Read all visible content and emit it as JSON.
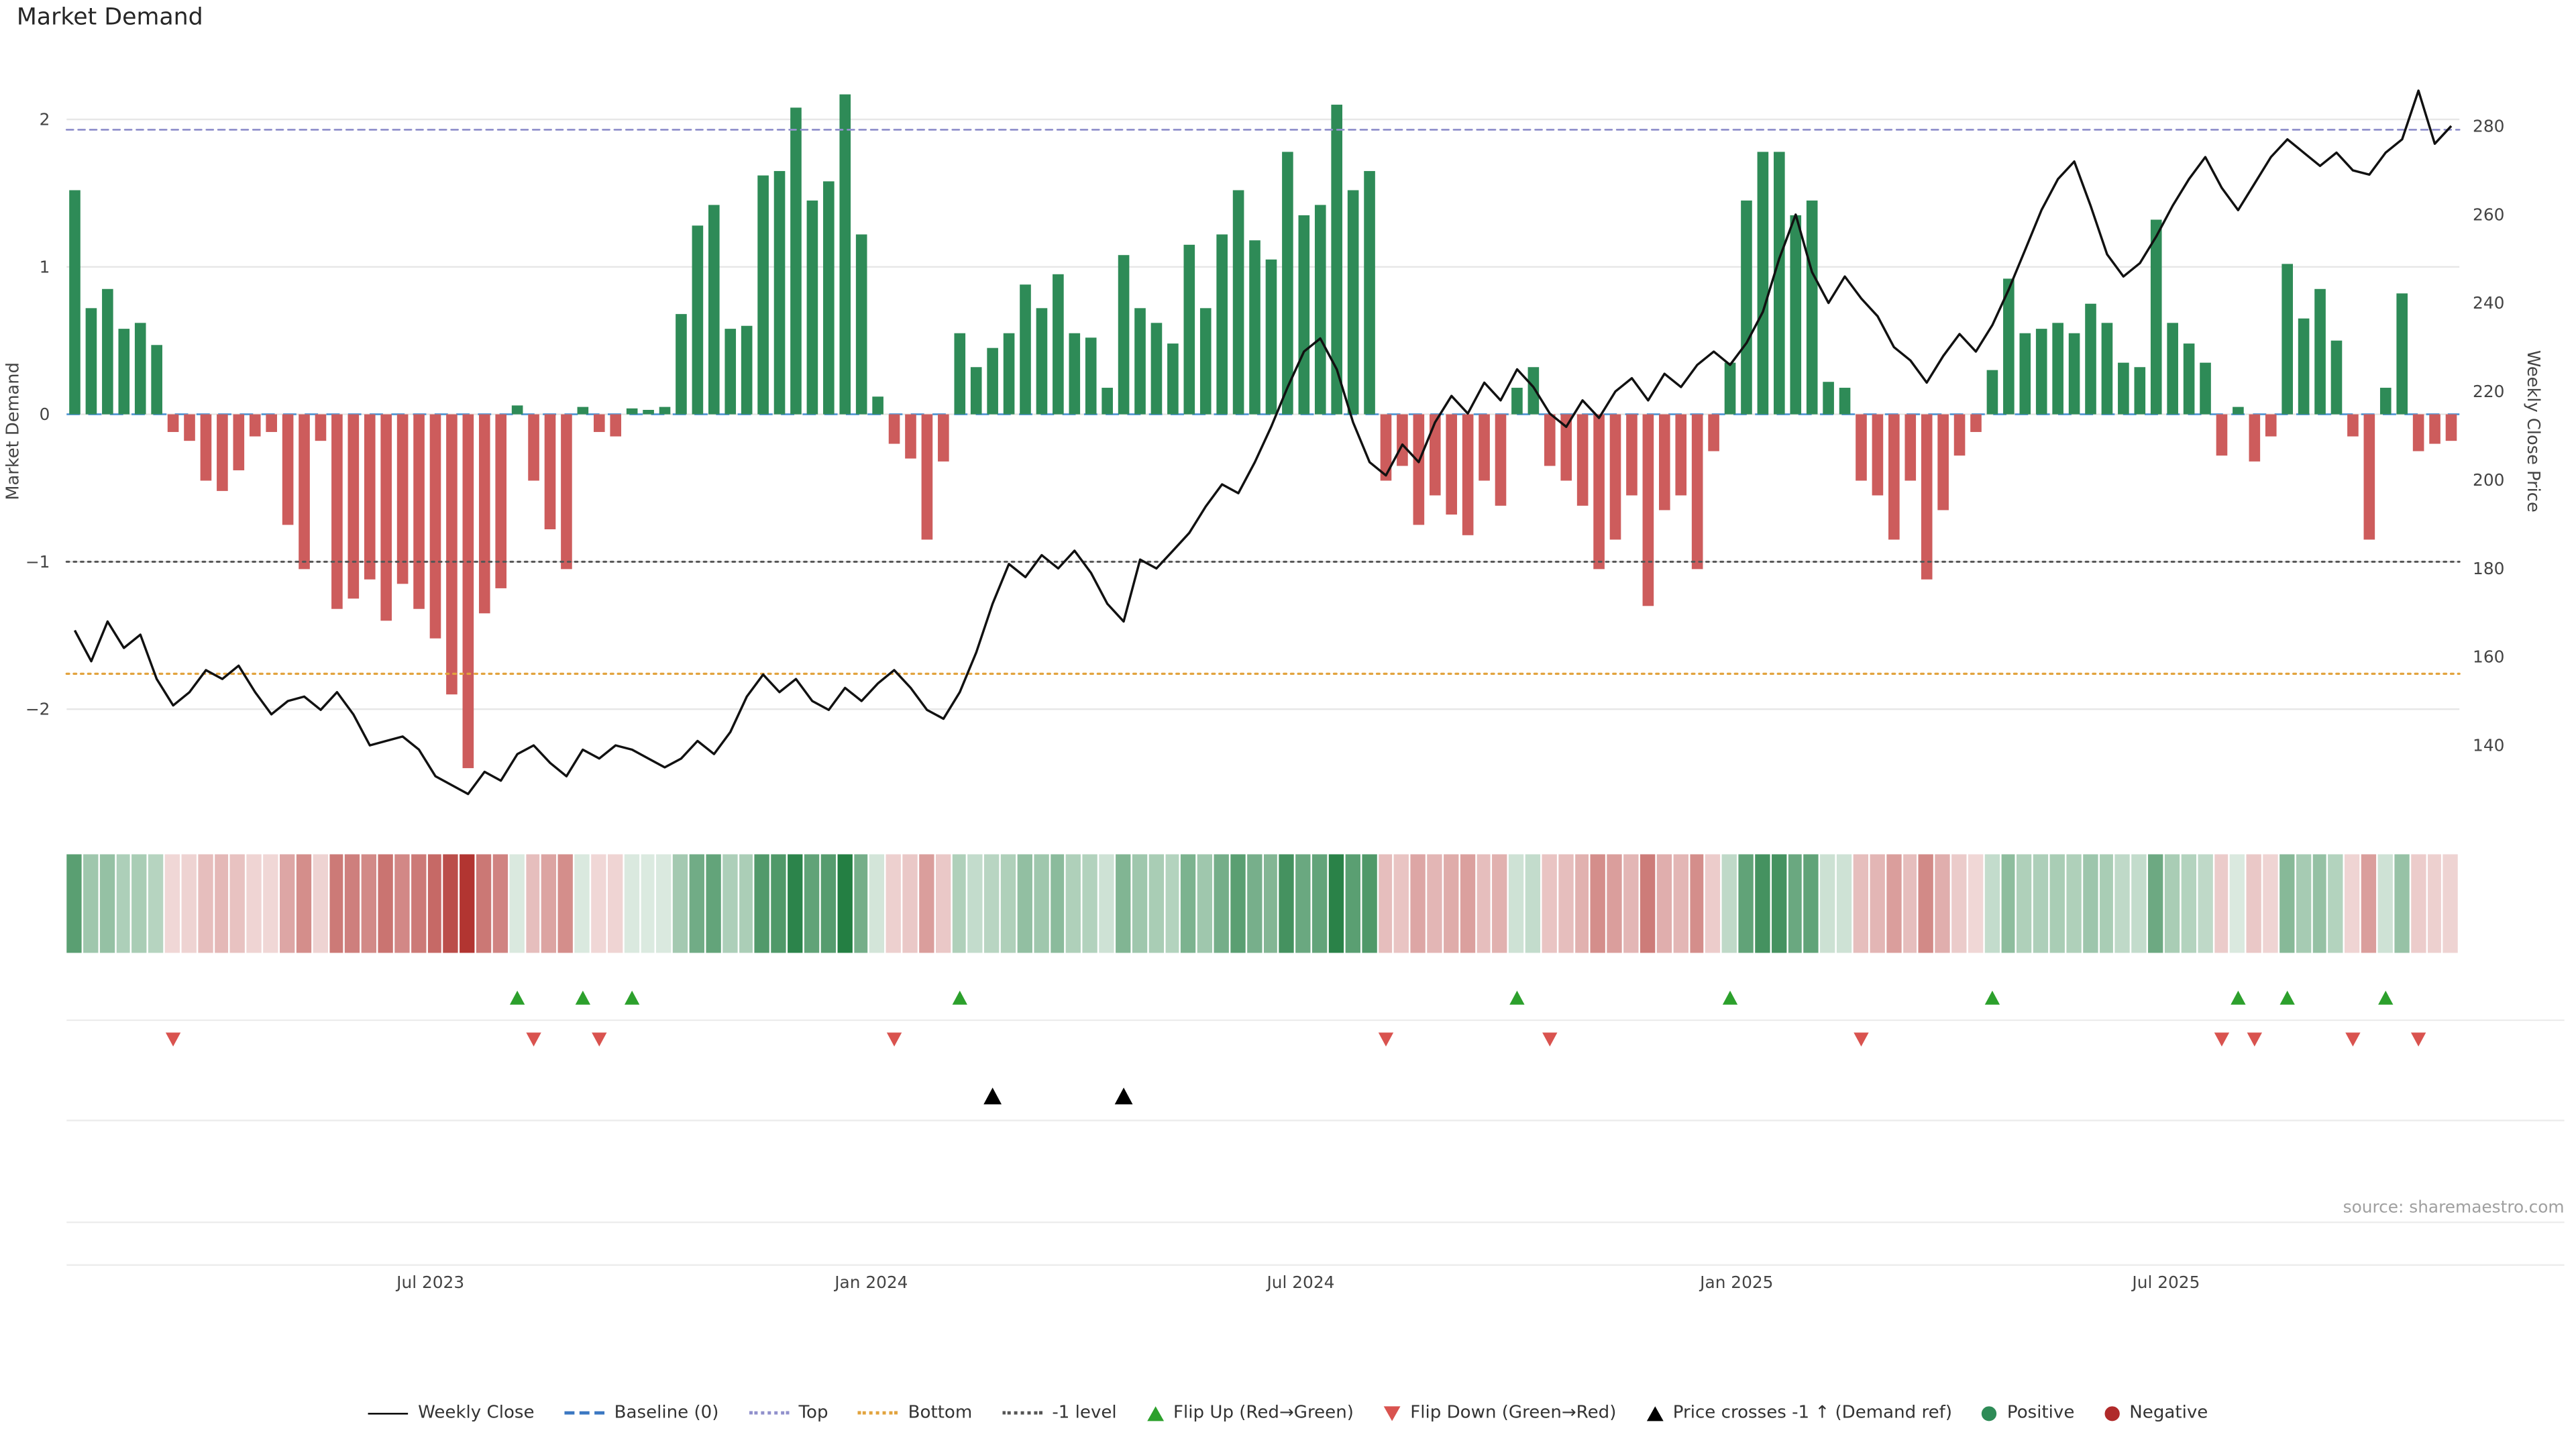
{
  "title": "Market Demand",
  "source": "source: sharemaestro.com",
  "axes": {
    "left_label": "Market Demand",
    "right_label": "Weekly Close Price"
  },
  "colors": {
    "positive": "#2e8b57",
    "negative": "#cd5c5c",
    "price_line": "#111111",
    "baseline": "#5b9bd5",
    "top_line": "#9191cc",
    "bottom_line": "#e2a33e",
    "minus_one_line": "#555555",
    "flip_up": "#2ca02c",
    "flip_down": "#d9534f",
    "price_cross": "#000000",
    "grid": "#e7e7e7",
    "tick_text": "#444444",
    "source_text": "#a0a0a0"
  },
  "legend": [
    {
      "icon": "line",
      "color": "#000000",
      "label": "Weekly Close"
    },
    {
      "icon": "dashed",
      "color": "#3b78c2",
      "label": "Baseline (0)"
    },
    {
      "icon": "dotted",
      "color": "#9191cc",
      "label": "Top"
    },
    {
      "icon": "dotted",
      "color": "#e2a33e",
      "label": "Bottom"
    },
    {
      "icon": "dotted",
      "color": "#555555",
      "label": "-1 level"
    },
    {
      "icon": "tri-up",
      "color": "#2ca02c",
      "label": "Flip Up (Red→Green)"
    },
    {
      "icon": "tri-down",
      "color": "#d9534f",
      "label": "Flip Down (Green→Red)"
    },
    {
      "icon": "tri-up",
      "color": "#000000",
      "label": "Price crosses -1 ↑ (Demand ref)"
    },
    {
      "icon": "dot",
      "color": "#2e8b57",
      "label": "Positive"
    },
    {
      "icon": "dot",
      "color": "#b02a2a",
      "label": "Negative"
    }
  ],
  "chart_data": {
    "type": "bar+line",
    "title": "Market Demand",
    "x_unit": "weekly points, Feb 2023 - Nov 2025",
    "n_points": 146,
    "x_ticks": [
      {
        "label": "Jul 2023",
        "pos": 21.7
      },
      {
        "label": "Jan 2024",
        "pos": 48.6
      },
      {
        "label": "Jul 2024",
        "pos": 74.8
      },
      {
        "label": "Jan 2025",
        "pos": 101.4
      },
      {
        "label": "Jul 2025",
        "pos": 127.6
      }
    ],
    "ylim_left": [
      -2.65,
      2.42
    ],
    "ylim_right": [
      126.5,
      295.5
    ],
    "left_ticks": [
      2,
      1,
      0,
      -1,
      -2
    ],
    "right_ticks": [
      280,
      260,
      240,
      220,
      200,
      180,
      160,
      140
    ],
    "reference_lines": [
      {
        "name": "Baseline (0)",
        "value": 0,
        "color": "#5b9bd5",
        "dash": "8 5",
        "width": 1.2
      },
      {
        "name": "Top",
        "value": 1.93,
        "color": "#9191cc",
        "dash": "4 3",
        "width": 1.1
      },
      {
        "name": "Bottom",
        "value": -1.76,
        "color": "#e2a33e",
        "dash": "1.5 2.8",
        "width": 1.3
      },
      {
        "name": "-1 level",
        "value": -1,
        "color": "#555555",
        "dash": "1.5 2.8",
        "width": 1.2
      }
    ],
    "series": [
      {
        "name": "Market Demand",
        "type": "bar",
        "axis": "left",
        "values": [
          1.52,
          0.72,
          0.85,
          0.58,
          0.62,
          0.47,
          -0.12,
          -0.18,
          -0.45,
          -0.52,
          -0.38,
          -0.15,
          -0.12,
          -0.75,
          -1.05,
          -0.18,
          -1.32,
          -1.25,
          -1.12,
          -1.4,
          -1.15,
          -1.32,
          -1.52,
          -1.9,
          -2.4,
          -1.35,
          -1.18,
          0.06,
          -0.45,
          -0.78,
          -1.05,
          0.05,
          -0.12,
          -0.15,
          0.04,
          0.03,
          0.05,
          0.68,
          1.28,
          1.42,
          0.58,
          0.6,
          1.62,
          1.65,
          2.08,
          1.45,
          1.58,
          2.17,
          1.22,
          0.12,
          -0.2,
          -0.3,
          -0.85,
          -0.32,
          0.55,
          0.32,
          0.45,
          0.55,
          0.88,
          0.72,
          0.95,
          0.55,
          0.52,
          0.18,
          1.08,
          0.72,
          0.62,
          0.48,
          1.15,
          0.72,
          1.22,
          1.52,
          1.18,
          1.05,
          1.78,
          1.35,
          1.42,
          2.1,
          1.52,
          1.65,
          -0.45,
          -0.35,
          -0.75,
          -0.55,
          -0.68,
          -0.82,
          -0.45,
          -0.62,
          0.18,
          0.32,
          -0.35,
          -0.45,
          -0.62,
          -1.05,
          -0.85,
          -0.55,
          -1.3,
          -0.65,
          -0.55,
          -1.05,
          -0.25,
          0.35,
          1.45,
          1.78,
          1.78,
          1.35,
          1.45,
          0.22,
          0.18,
          -0.45,
          -0.55,
          -0.85,
          -0.45,
          -1.12,
          -0.65,
          -0.28,
          -0.12,
          0.3,
          0.92,
          0.55,
          0.58,
          0.62,
          0.55,
          0.75,
          0.62,
          0.35,
          0.32,
          1.32,
          0.62,
          0.48,
          0.35,
          -0.28,
          0.05,
          -0.32,
          -0.15,
          1.02,
          0.65,
          0.85,
          0.5,
          -0.15,
          -0.85,
          0.18,
          0.82,
          -0.25,
          -0.2,
          -0.18
        ]
      },
      {
        "name": "Weekly Close",
        "type": "line",
        "axis": "right",
        "values": [
          166,
          159,
          168,
          162,
          165,
          155,
          149,
          152,
          157,
          155,
          158,
          152,
          147,
          150,
          151,
          148,
          152,
          147,
          140,
          141,
          142,
          139,
          133,
          131,
          129,
          134,
          132,
          138,
          140,
          136,
          133,
          139,
          137,
          140,
          139,
          137,
          135,
          137,
          141,
          138,
          143,
          151,
          156,
          152,
          155,
          150,
          148,
          153,
          150,
          154,
          157,
          153,
          148,
          146,
          152,
          161,
          172,
          181,
          178,
          183,
          180,
          184,
          179,
          172,
          168,
          182,
          180,
          184,
          188,
          194,
          199,
          197,
          204,
          212,
          221,
          229,
          232,
          225,
          213,
          204,
          201,
          208,
          204,
          213,
          219,
          215,
          222,
          218,
          225,
          221,
          215,
          212,
          218,
          214,
          220,
          223,
          218,
          224,
          221,
          226,
          229,
          226,
          231,
          238,
          250,
          260,
          247,
          240,
          246,
          241,
          237,
          230,
          227,
          222,
          228,
          233,
          229,
          235,
          243,
          252,
          261,
          268,
          272,
          262,
          251,
          246,
          249,
          255,
          262,
          268,
          273,
          266,
          261,
          267,
          273,
          277,
          274,
          271,
          274,
          270,
          269,
          274,
          277,
          288,
          276,
          280
        ]
      }
    ],
    "markers": {
      "flip_up": {
        "label": "Flip Up (Red→Green)",
        "indices": [
          27,
          31,
          34,
          54,
          88,
          101,
          117,
          132,
          135,
          141
        ]
      },
      "flip_down": {
        "label": "Flip Down (Green→Red)",
        "indices": [
          6,
          28,
          32,
          50,
          80,
          90,
          109,
          131,
          133,
          139,
          143
        ]
      },
      "price_cross": {
        "label": "Price crosses -1 ↑ (Demand ref)",
        "indices": [
          56,
          64
        ]
      }
    }
  }
}
